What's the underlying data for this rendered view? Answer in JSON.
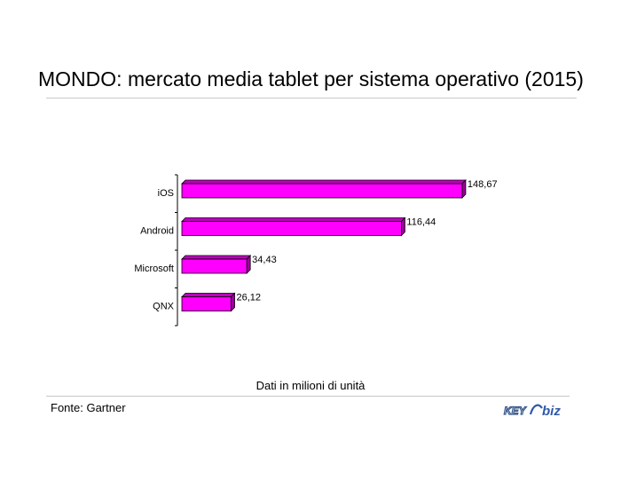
{
  "header": {
    "title": "MONDO: mercato media tablet per sistema operativo (2015)"
  },
  "footer": {
    "note": "Dati in milioni di unità",
    "source": "Fonte: Gartner",
    "logo_text": "KEY4biz"
  },
  "colors": {
    "bar": "#ff00ff",
    "bar_dark": "#9a009a",
    "bar_top": "#c000c0",
    "rule": "#c8c8c8"
  },
  "chart_data": {
    "type": "bar",
    "orientation": "horizontal",
    "categories": [
      "iOS",
      "Android",
      "Microsoft",
      "QNX"
    ],
    "values": [
      148.67,
      116.44,
      34.43,
      26.12
    ],
    "value_labels": [
      "148,67",
      "116,44",
      "34,43",
      "26,12"
    ],
    "title": "MONDO: mercato media tablet per sistema operativo (2015)",
    "xlabel": "",
    "ylabel": "",
    "grid": false,
    "legend": "none"
  }
}
